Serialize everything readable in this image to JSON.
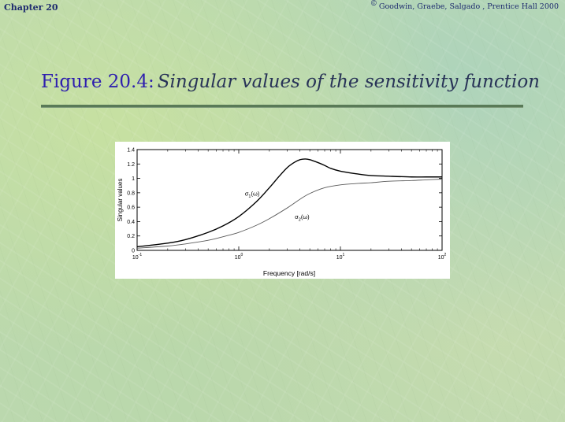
{
  "header": {
    "chapter": "Chapter 20",
    "copyright_symbol": "©",
    "copyright": "Goodwin, Graebe, Salgado , Prentice Hall 2000"
  },
  "figure": {
    "label": "Figure 20.4:",
    "caption": "Singular values of the sensitivity function"
  },
  "chart_data": {
    "type": "line",
    "xlabel": "Frequency [rad/s]",
    "ylabel": "Singular values",
    "xscale": "log",
    "xlim": [
      0.1,
      100
    ],
    "ylim": [
      0,
      1.4
    ],
    "grid": false,
    "x_ticks": [
      {
        "base": "10",
        "exp": "-1",
        "value": 0.1
      },
      {
        "base": "10",
        "exp": "0",
        "value": 1
      },
      {
        "base": "10",
        "exp": "1",
        "value": 10
      },
      {
        "base": "10",
        "exp": "2",
        "value": 100
      }
    ],
    "y_ticks": [
      "0",
      "0.2",
      "0.4",
      "0.6",
      "0.8",
      "1",
      "1.2",
      "1.4"
    ],
    "series": [
      {
        "name": "σ1(ω)",
        "label_main": "σ",
        "label_sub": "1",
        "label_tail": "(ω)",
        "color": "#000000",
        "x": [
          0.1,
          0.2,
          0.3,
          0.5,
          0.7,
          1,
          1.5,
          2,
          2.5,
          3,
          3.5,
          4,
          4.5,
          5,
          6,
          7,
          8,
          10,
          15,
          20,
          30,
          50,
          70,
          100
        ],
        "y": [
          0.05,
          0.1,
          0.15,
          0.25,
          0.34,
          0.47,
          0.68,
          0.87,
          1.03,
          1.15,
          1.22,
          1.26,
          1.27,
          1.26,
          1.22,
          1.18,
          1.14,
          1.1,
          1.06,
          1.04,
          1.03,
          1.02,
          1.02,
          1.02
        ]
      },
      {
        "name": "σ2(ω)",
        "label_main": "σ",
        "label_sub": "2",
        "label_tail": "(ω)",
        "color": "#5a5a5a",
        "x": [
          0.1,
          0.2,
          0.3,
          0.5,
          0.7,
          1,
          1.5,
          2,
          3,
          4,
          5,
          7,
          10,
          15,
          20,
          30,
          50,
          70,
          100
        ],
        "y": [
          0.03,
          0.06,
          0.09,
          0.14,
          0.19,
          0.25,
          0.35,
          0.44,
          0.59,
          0.71,
          0.79,
          0.87,
          0.91,
          0.93,
          0.94,
          0.96,
          0.97,
          0.98,
          0.99
        ]
      }
    ]
  }
}
